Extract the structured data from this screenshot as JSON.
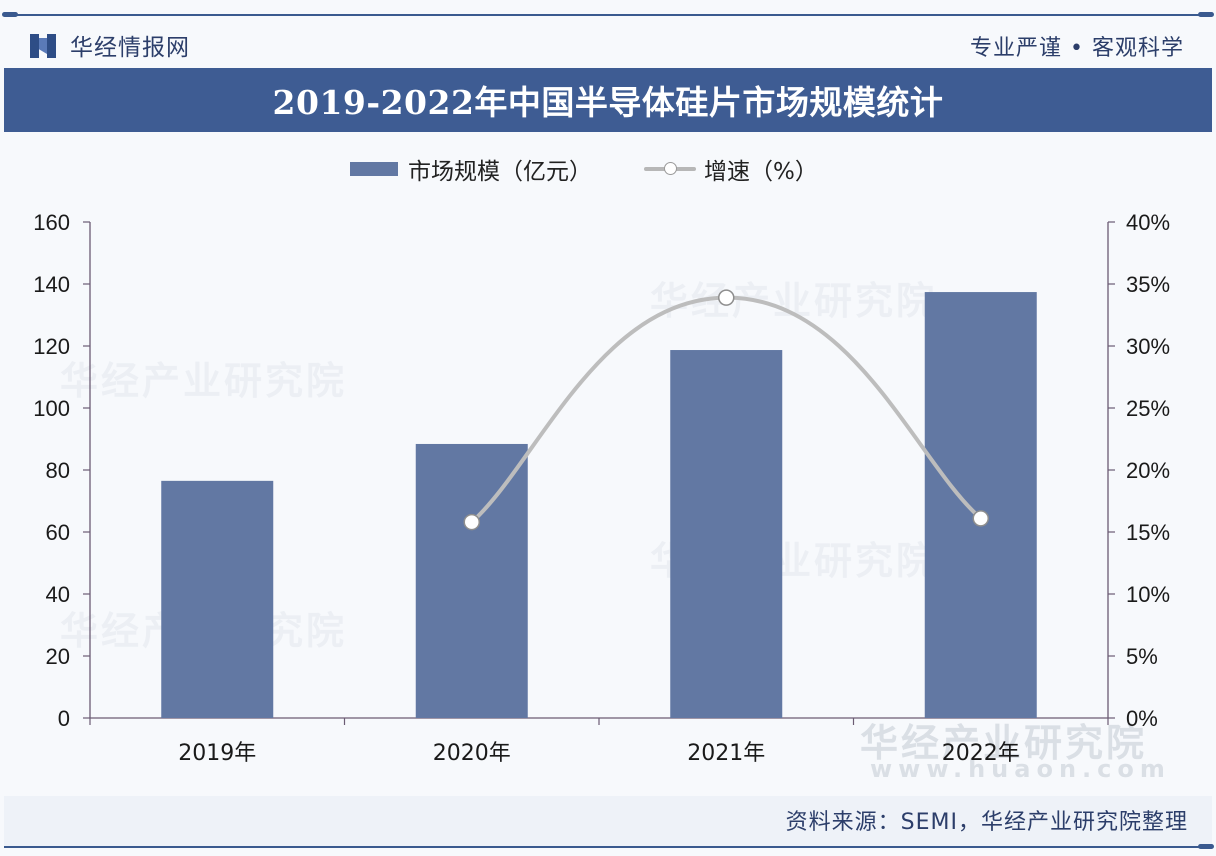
{
  "header": {
    "brand_name": "华经情报网",
    "slogan": "专业严谨 • 客观科学",
    "title": "2019-2022年中国半导体硅片市场规模统计"
  },
  "legend": {
    "bar_label": "市场规模（亿元）",
    "line_label": "增速（%）"
  },
  "footer": {
    "source": "资料来源：SEMI，华经产业研究院整理"
  },
  "watermark": {
    "text": "华经产业研究院",
    "url": "www.huaon.com"
  },
  "colors": {
    "bar": "#6278a3",
    "line": "#bdbdbd",
    "marker_fill": "#ffffff",
    "axis": "#6b5b73",
    "title_bar": "#3e5c93"
  },
  "chart_data": {
    "type": "bar",
    "title": "2019-2022年中国半导体硅片市场规模统计",
    "categories": [
      "2019年",
      "2020年",
      "2021年",
      "2022年"
    ],
    "series": [
      {
        "name": "市场规模（亿元）",
        "type": "bar",
        "axis": "left",
        "values": [
          76.5,
          88.4,
          118.7,
          137.4
        ]
      },
      {
        "name": "增速（%）",
        "type": "line",
        "axis": "right",
        "values": [
          null,
          15.8,
          33.9,
          16.1
        ]
      }
    ],
    "y_left": {
      "min": 0,
      "max": 160,
      "ticks": [
        "0",
        "20",
        "40",
        "60",
        "80",
        "100",
        "120",
        "140",
        "160"
      ]
    },
    "y_right": {
      "min": 0,
      "max": 40,
      "ticks": [
        "0%",
        "5%",
        "10%",
        "15%",
        "20%",
        "25%",
        "30%",
        "35%",
        "40%"
      ]
    },
    "xlabel": "",
    "ylabel": "",
    "legend_position": "top",
    "grid": false
  }
}
